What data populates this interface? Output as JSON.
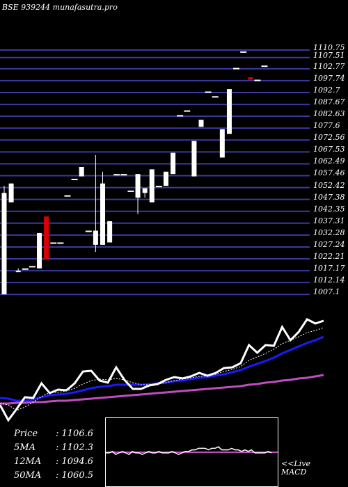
{
  "header": {
    "symbol": "BSE 939244",
    "site": "munafasutra.pro"
  },
  "chart_data": {
    "type": "candlestick",
    "ylim": [
      1002.3,
      1113.5
    ],
    "y_ticks": [
      "1110.75",
      "1107.51",
      "1102.77",
      "1097.74",
      "1092.7",
      "1087.67",
      "1082.63",
      "1077.6",
      "1072.56",
      "1067.53",
      "1062.49",
      "1057.46",
      "1052.42",
      "1047.38",
      "1042.35",
      "1037.31",
      "1032.28",
      "1027.24",
      "1022.21",
      "1017.17",
      "1012.14",
      "1007.1"
    ],
    "candles": [
      {
        "o": 1050.0,
        "h": 1053.0,
        "l": 1007.0,
        "c": 1007.0,
        "color": "white"
      },
      {
        "o": 1046.0,
        "h": 1054.0,
        "l": 1046.0,
        "c": 1054.0,
        "color": "white"
      },
      {
        "o": 1017.0,
        "h": 1018.0,
        "l": 1017.0,
        "c": 1017.0,
        "color": "white"
      },
      {
        "o": 1018.0,
        "h": 1018.0,
        "l": 1018.0,
        "c": 1018.0,
        "color": "white"
      },
      {
        "o": 1019.0,
        "h": 1019.0,
        "l": 1019.0,
        "c": 1019.0,
        "color": "white"
      },
      {
        "o": 1018.0,
        "h": 1033.0,
        "l": 1018.0,
        "c": 1033.0,
        "color": "white"
      },
      {
        "o": 1040.0,
        "h": 1040.0,
        "l": 1022.0,
        "c": 1022.0,
        "color": "red"
      },
      {
        "o": 1029.0,
        "h": 1029.0,
        "l": 1029.0,
        "c": 1029.0,
        "color": "white"
      },
      {
        "o": 1029.0,
        "h": 1029.0,
        "l": 1029.0,
        "c": 1029.0,
        "color": "white"
      },
      {
        "o": 1049.0,
        "h": 1049.0,
        "l": 1049.0,
        "c": 1049.0,
        "color": "white"
      },
      {
        "o": 1056.0,
        "h": 1056.0,
        "l": 1056.0,
        "c": 1056.0,
        "color": "white"
      },
      {
        "o": 1061.0,
        "h": 1061.0,
        "l": 1057.0,
        "c": 1057.0,
        "color": "white"
      },
      {
        "o": 1034.0,
        "h": 1034.0,
        "l": 1034.0,
        "c": 1034.0,
        "color": "white"
      },
      {
        "o": 1028.0,
        "h": 1066.0,
        "l": 1025.0,
        "c": 1034.0,
        "color": "white"
      },
      {
        "o": 1028.0,
        "h": 1059.0,
        "l": 1028.0,
        "c": 1054.0,
        "color": "white"
      },
      {
        "o": 1029.0,
        "h": 1038.0,
        "l": 1029.0,
        "c": 1038.0,
        "color": "white"
      },
      {
        "o": 1058.0,
        "h": 1058.0,
        "l": 1058.0,
        "c": 1058.0,
        "color": "white"
      },
      {
        "o": 1058.0,
        "h": 1058.0,
        "l": 1058.0,
        "c": 1058.0,
        "color": "white"
      },
      {
        "o": 1051.0,
        "h": 1051.0,
        "l": 1051.0,
        "c": 1051.0,
        "color": "white"
      },
      {
        "o": 1048.0,
        "h": 1058.0,
        "l": 1041.0,
        "c": 1058.0,
        "color": "white"
      },
      {
        "o": 1050.0,
        "h": 1052.0,
        "l": 1048.0,
        "c": 1052.0,
        "color": "white"
      },
      {
        "o": 1046.0,
        "h": 1060.0,
        "l": 1046.0,
        "c": 1060.0,
        "color": "white"
      },
      {
        "o": 1053.0,
        "h": 1053.0,
        "l": 1053.0,
        "c": 1053.0,
        "color": "white"
      },
      {
        "o": 1053.0,
        "h": 1059.0,
        "l": 1053.0,
        "c": 1059.0,
        "color": "white"
      },
      {
        "o": 1058.0,
        "h": 1067.0,
        "l": 1058.0,
        "c": 1067.0,
        "color": "white"
      },
      {
        "o": 1083.0,
        "h": 1083.0,
        "l": 1083.0,
        "c": 1083.0,
        "color": "white"
      },
      {
        "o": 1085.0,
        "h": 1085.0,
        "l": 1085.0,
        "c": 1085.0,
        "color": "white"
      },
      {
        "o": 1057.0,
        "h": 1072.0,
        "l": 1057.0,
        "c": 1072.0,
        "color": "white"
      },
      {
        "o": 1078.0,
        "h": 1081.0,
        "l": 1078.0,
        "c": 1081.0,
        "color": "white"
      },
      {
        "o": 1093.0,
        "h": 1093.0,
        "l": 1093.0,
        "c": 1093.0,
        "color": "white"
      },
      {
        "o": 1091.0,
        "h": 1091.0,
        "l": 1091.0,
        "c": 1091.0,
        "color": "white"
      },
      {
        "o": 1065.0,
        "h": 1077.0,
        "l": 1065.0,
        "c": 1077.0,
        "color": "white"
      },
      {
        "o": 1075.0,
        "h": 1094.0,
        "l": 1075.0,
        "c": 1094.0,
        "color": "white"
      },
      {
        "o": 1103.0,
        "h": 1103.0,
        "l": 1103.0,
        "c": 1103.0,
        "color": "white"
      },
      {
        "o": 1110.0,
        "h": 1110.0,
        "l": 1110.0,
        "c": 1110.0,
        "color": "white"
      },
      {
        "o": 1098.0,
        "h": 1099.0,
        "l": 1098.0,
        "c": 1099.0,
        "color": "red"
      },
      {
        "o": 1098.0,
        "h": 1098.0,
        "l": 1098.0,
        "c": 1098.0,
        "color": "white"
      },
      {
        "o": 1104.0,
        "h": 1104.0,
        "l": 1104.0,
        "c": 1104.0,
        "color": "white"
      }
    ],
    "price_line": [
      38,
      16,
      32,
      49,
      48,
      69,
      55,
      60,
      59,
      69,
      86,
      87,
      73,
      70,
      92,
      74,
      61,
      61,
      66,
      68,
      74,
      78,
      76,
      79,
      84,
      80,
      84,
      91,
      92,
      98,
      124,
      113,
      124,
      123,
      150,
      131,
      143,
      161,
      155,
      159
    ],
    "ma_short": [
      40,
      38,
      30,
      35,
      42,
      50,
      56,
      56,
      58,
      62,
      68,
      73,
      75,
      74,
      76,
      74,
      70,
      67,
      67,
      68,
      70,
      73,
      75,
      77,
      79,
      80,
      82,
      86,
      89,
      93,
      102,
      107,
      112,
      118,
      126,
      131,
      136,
      142,
      145,
      149
    ],
    "ma_mid": [
      48,
      47,
      44,
      44,
      46,
      49,
      52,
      53,
      54,
      56,
      59,
      62,
      64,
      65,
      67,
      67,
      67,
      67,
      68,
      69,
      70,
      72,
      73,
      75,
      77,
      78,
      80,
      82,
      85,
      88,
      93,
      97,
      101,
      106,
      112,
      117,
      122,
      127,
      131,
      136
    ],
    "ma_long": [
      40,
      40,
      41,
      41,
      42,
      42,
      43,
      44,
      44,
      45,
      46,
      47,
      48,
      49,
      50,
      51,
      52,
      53,
      54,
      55,
      56,
      57,
      58,
      59,
      60,
      61,
      62,
      63,
      64,
      65,
      67,
      68,
      70,
      71,
      73,
      74,
      76,
      77,
      79,
      81
    ],
    "macd": [
      0,
      0,
      1,
      -1,
      0,
      1,
      0,
      -1,
      1,
      0,
      0,
      -1,
      0,
      1,
      0,
      0,
      1,
      0,
      0,
      0,
      1,
      0,
      -1,
      0,
      1,
      1,
      2,
      2,
      3,
      3,
      3,
      2,
      3,
      3,
      4,
      2,
      2,
      2,
      3,
      2,
      2,
      1,
      2,
      1,
      2,
      0,
      0,
      0,
      0,
      1,
      0
    ]
  },
  "stats": [
    {
      "label": "Price",
      "value": "1106.6"
    },
    {
      "label": "5MA",
      "value": "1102.3"
    },
    {
      "label": "12MA",
      "value": "1094.6"
    },
    {
      "label": "50MA",
      "value": "1060.5"
    }
  ],
  "live_label": "<<Live",
  "macd_label": "MACD",
  "colors": {
    "background": "#000000",
    "grid_line": "#3a3aa0",
    "candle_up": "#ffffff",
    "candle_down": "#dd0000",
    "ma_mid": "#1a1aff",
    "ma_long": "#c04cc0",
    "macd_signal": "#c04cc0"
  }
}
